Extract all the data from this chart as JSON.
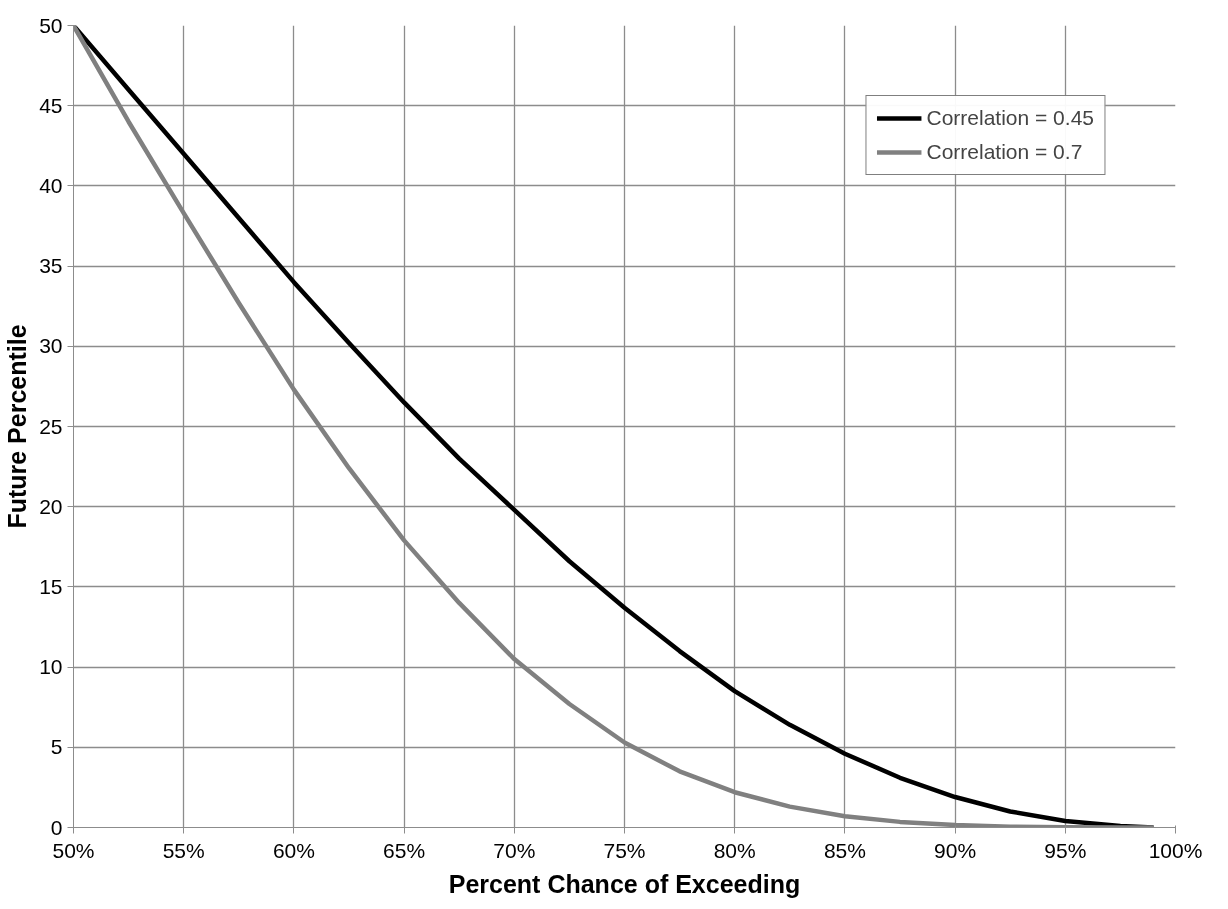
{
  "chart_data": {
    "type": "line",
    "xlabel": "Percent Chance of Exceeding",
    "ylabel": "Future Percentile",
    "xlim": [
      50,
      100
    ],
    "ylim": [
      0,
      50
    ],
    "xticks": [
      {
        "value": 50,
        "label": "50%"
      },
      {
        "value": 55,
        "label": "55%"
      },
      {
        "value": 60,
        "label": "60%"
      },
      {
        "value": 65,
        "label": "65%"
      },
      {
        "value": 70,
        "label": "70%"
      },
      {
        "value": 75,
        "label": "75%"
      },
      {
        "value": 80,
        "label": "80%"
      },
      {
        "value": 85,
        "label": "85%"
      },
      {
        "value": 90,
        "label": "90%"
      },
      {
        "value": 95,
        "label": "95%"
      },
      {
        "value": 100,
        "label": "100%"
      }
    ],
    "yticks": [
      0,
      5,
      10,
      15,
      20,
      25,
      30,
      35,
      40,
      45,
      50
    ],
    "x": [
      50,
      52.5,
      55,
      57.5,
      60,
      62.5,
      65,
      67.5,
      70,
      72.5,
      75,
      77.5,
      80,
      82.5,
      85,
      87.5,
      90,
      92.5,
      95,
      97.5,
      99
    ],
    "series": [
      {
        "name": "Correlation = 0.45",
        "color": "#000000",
        "values": [
          50,
          46,
          42,
          38,
          34,
          30.2,
          26.5,
          23,
          19.8,
          16.6,
          13.7,
          11,
          8.5,
          6.4,
          4.6,
          3.1,
          1.9,
          1,
          0.4,
          0.1,
          0
        ]
      },
      {
        "name": "Correlation = 0.7",
        "color": "#808080",
        "values": [
          50,
          44,
          38.3,
          32.7,
          27.3,
          22.4,
          17.9,
          14,
          10.5,
          7.7,
          5.3,
          3.5,
          2.2,
          1.3,
          0.7,
          0.35,
          0.15,
          0.05,
          0.02,
          0,
          0
        ]
      }
    ],
    "grid": true,
    "legend": "top right",
    "marker": "none",
    "line_style": "solid"
  }
}
